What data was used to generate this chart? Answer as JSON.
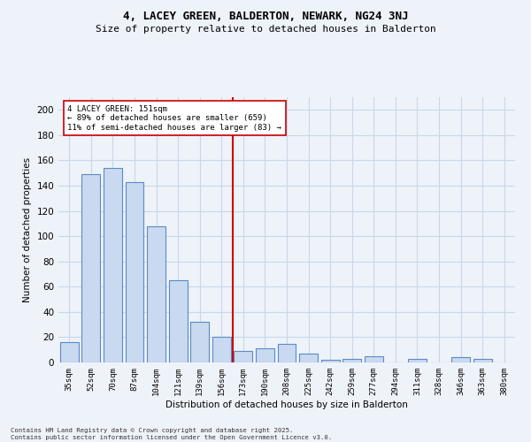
{
  "title": "4, LACEY GREEN, BALDERTON, NEWARK, NG24 3NJ",
  "subtitle": "Size of property relative to detached houses in Balderton",
  "xlabel": "Distribution of detached houses by size in Balderton",
  "ylabel": "Number of detached properties",
  "categories": [
    "35sqm",
    "52sqm",
    "70sqm",
    "87sqm",
    "104sqm",
    "121sqm",
    "139sqm",
    "156sqm",
    "173sqm",
    "190sqm",
    "208sqm",
    "225sqm",
    "242sqm",
    "259sqm",
    "277sqm",
    "294sqm",
    "311sqm",
    "328sqm",
    "346sqm",
    "363sqm",
    "380sqm"
  ],
  "values": [
    16,
    149,
    154,
    143,
    108,
    65,
    32,
    20,
    9,
    11,
    15,
    7,
    2,
    3,
    5,
    0,
    3,
    0,
    4,
    3,
    0
  ],
  "bar_color": "#c9d9f0",
  "bar_edge_color": "#5b8ac7",
  "grid_color": "#c8d8e8",
  "background_color": "#eef2f9",
  "vline_color": "#cc0000",
  "vline_index": 7.5,
  "annotation_title": "4 LACEY GREEN: 151sqm",
  "annotation_line1": "← 89% of detached houses are smaller (659)",
  "annotation_line2": "11% of semi-detached houses are larger (83) →",
  "ylim": [
    0,
    210
  ],
  "yticks": [
    0,
    20,
    40,
    60,
    80,
    100,
    120,
    140,
    160,
    180,
    200
  ],
  "title_fontsize": 9,
  "subtitle_fontsize": 8,
  "footer_line1": "Contains HM Land Registry data © Crown copyright and database right 2025.",
  "footer_line2": "Contains public sector information licensed under the Open Government Licence v3.0."
}
